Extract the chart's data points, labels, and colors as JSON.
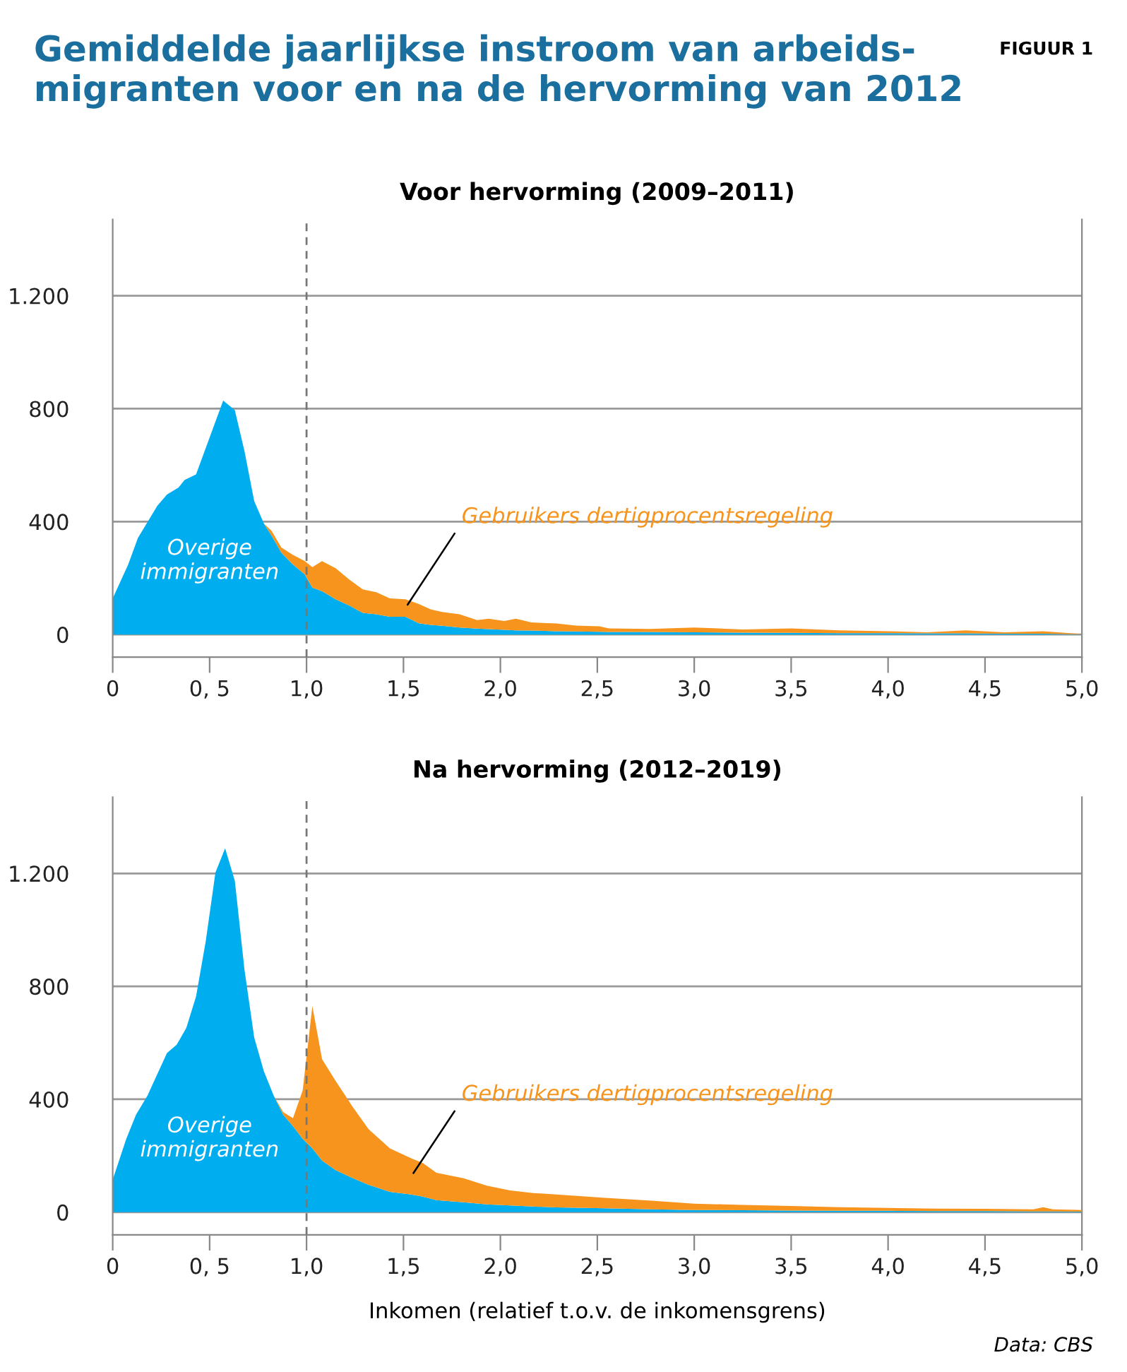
{
  "chart_data": [
    {
      "type": "area",
      "stacked": true,
      "title": "Voor hervorming (2009–2011)",
      "annotations": [
        "Gemiddelde jaarlijkse instroom van arbeids-\nmigranten voor en na de hervorming van 2012",
        "FIGUUR 1"
      ],
      "x": [
        0,
        0.08,
        0.13,
        0.23,
        0.28,
        0.34,
        0.37,
        0.43,
        0.57,
        0.63,
        0.68,
        0.73,
        0.78,
        0.82,
        0.87,
        0.93,
        0.99,
        1.03,
        1.08,
        1.15,
        1.22,
        1.29,
        1.36,
        1.43,
        1.51,
        1.58,
        1.64,
        1.7,
        1.79,
        1.88,
        1.94,
        2.02,
        2.08,
        2.16,
        2.29,
        2.39,
        2.51,
        2.56,
        2.77,
        3.0,
        3.25,
        3.5,
        3.75,
        4.0,
        4.2,
        4.4,
        4.6,
        4.8,
        5.0
      ],
      "series": [
        {
          "name": "Overige immigranten",
          "color": "#00aeef",
          "values": [
            128,
            248,
            342,
            456,
            496,
            521,
            547,
            567,
            829,
            795,
            649,
            473,
            393,
            350,
            290,
            248,
            214,
            166,
            154,
            125,
            103,
            77,
            72,
            63,
            63,
            40,
            34,
            31,
            25,
            21,
            19,
            17,
            15,
            14,
            12,
            11,
            10,
            9,
            9,
            8,
            7,
            6,
            5,
            5,
            4,
            4,
            3,
            3,
            1
          ]
        },
        {
          "name": "Gebruikers dertigprocentsregeling",
          "color": "#f7941d",
          "values": [
            null,
            null,
            null,
            null,
            null,
            null,
            null,
            null,
            null,
            null,
            null,
            null,
            0,
            17,
            18,
            34,
            47,
            73,
            106,
            110,
            92,
            83,
            78,
            65,
            62,
            68,
            55,
            49,
            47,
            30,
            37,
            31,
            41,
            29,
            27,
            21,
            19,
            13,
            11,
            17,
            11,
            16,
            10,
            7,
            4,
            11,
            5,
            9,
            1
          ]
        }
      ],
      "xlim": [
        0,
        5
      ],
      "xticks": [
        0,
        {
          "value": 0.5,
          "label": "0, 5"
        },
        {
          "value": 1,
          "label": "1,0"
        },
        {
          "value": 1.5,
          "label": "1,5"
        },
        {
          "value": 2,
          "label": "2,0"
        },
        {
          "value": 2.5,
          "label": "2,5"
        },
        {
          "value": 3,
          "label": "3,0"
        },
        {
          "value": 3.5,
          "label": "3,5"
        },
        {
          "value": 4,
          "label": "4,0"
        },
        {
          "value": 4.5,
          "label": "4,5"
        },
        {
          "value": 5,
          "label": "5,0"
        }
      ],
      "ylim": [
        -80,
        1470
      ],
      "yticks": [
        0,
        400,
        800,
        {
          "value": 1200,
          "label": "1.200"
        }
      ],
      "ref_lines": [
        {
          "axis": "x",
          "value": 1,
          "color": "#777777",
          "line_style": "dashed"
        }
      ],
      "grid": "y",
      "legend": false
    },
    {
      "type": "area",
      "stacked": true,
      "title": "Na hervorming (2012–2019)",
      "xlabel": "Inkomen (relatief t.o.v. de inkomensgrens)",
      "annotations": [
        "Data: CBS"
      ],
      "x": [
        0,
        0.07,
        0.12,
        0.18,
        0.28,
        0.33,
        0.38,
        0.43,
        0.48,
        0.53,
        0.58,
        0.63,
        0.68,
        0.73,
        0.78,
        0.83,
        0.88,
        0.93,
        0.98,
        1.03,
        1.08,
        1.15,
        1.24,
        1.32,
        1.43,
        1.54,
        1.6,
        1.67,
        1.81,
        1.93,
        2.05,
        2.17,
        2.29,
        2.54,
        2.78,
        3.0,
        3.25,
        3.5,
        3.75,
        4.0,
        4.25,
        4.5,
        4.75,
        4.8,
        4.85,
        5.0
      ],
      "series": [
        {
          "name": "Overige immigranten",
          "color": "#00aeef",
          "values": [
            115,
            260,
            345,
            414,
            564,
            593,
            653,
            764,
            960,
            1203,
            1289,
            1174,
            858,
            619,
            499,
            414,
            345,
            305,
            260,
            226,
            183,
            149,
            120,
            97,
            72,
            63,
            55,
            43,
            35,
            28,
            24,
            20,
            17,
            14,
            10,
            8,
            7,
            6,
            5,
            5,
            4,
            4,
            3,
            3,
            3,
            2
          ]
        },
        {
          "name": "Gebruikers dertigprocentsregeling",
          "color": "#f7941d",
          "values": [
            null,
            null,
            null,
            null,
            null,
            null,
            null,
            null,
            null,
            null,
            null,
            null,
            null,
            null,
            null,
            0,
            9,
            28,
            171,
            504,
            359,
            316,
            251,
            197,
            154,
            128,
            119,
            97,
            85,
            66,
            53,
            48,
            46,
            37,
            31,
            22,
            19,
            16,
            13,
            10,
            9,
            8,
            7,
            15,
            7,
            6
          ]
        }
      ],
      "xlim": [
        0,
        5
      ],
      "xticks": [
        0,
        {
          "value": 0.5,
          "label": "0, 5"
        },
        {
          "value": 1,
          "label": "1,0"
        },
        {
          "value": 1.5,
          "label": "1,5"
        },
        {
          "value": 2,
          "label": "2,0"
        },
        {
          "value": 2.5,
          "label": "2,5"
        },
        {
          "value": 3,
          "label": "3,0"
        },
        {
          "value": 3.5,
          "label": "3,5"
        },
        {
          "value": 4,
          "label": "4,0"
        },
        {
          "value": 4.5,
          "label": "4,5"
        },
        {
          "value": 5,
          "label": "5,0"
        }
      ],
      "ylim": [
        -80,
        1470
      ],
      "yticks": [
        0,
        400,
        800,
        {
          "value": 1200,
          "label": "1.200"
        }
      ],
      "ref_lines": [
        {
          "axis": "x",
          "value": 1,
          "color": "#777777",
          "line_style": "dashed"
        }
      ],
      "grid": "y",
      "legend": false
    }
  ]
}
